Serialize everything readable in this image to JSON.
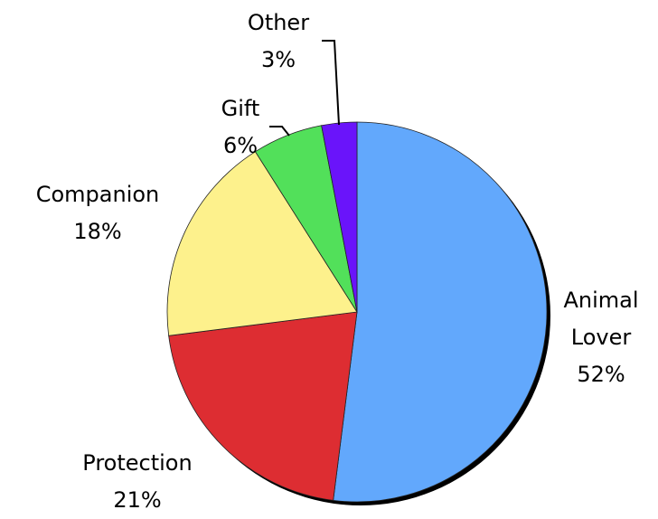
{
  "chart_data": {
    "type": "pie",
    "categories": [
      "Animal Lover",
      "Protection",
      "Companion",
      "Gift",
      "Other"
    ],
    "values": [
      52,
      21,
      18,
      6,
      3
    ],
    "value_labels": [
      "52%",
      "21%",
      "18%",
      "6%",
      "3%"
    ],
    "colors": [
      "#62a8fc",
      "#dd2d32",
      "#fdf18c",
      "#52e05a",
      "#6a14fa"
    ]
  }
}
